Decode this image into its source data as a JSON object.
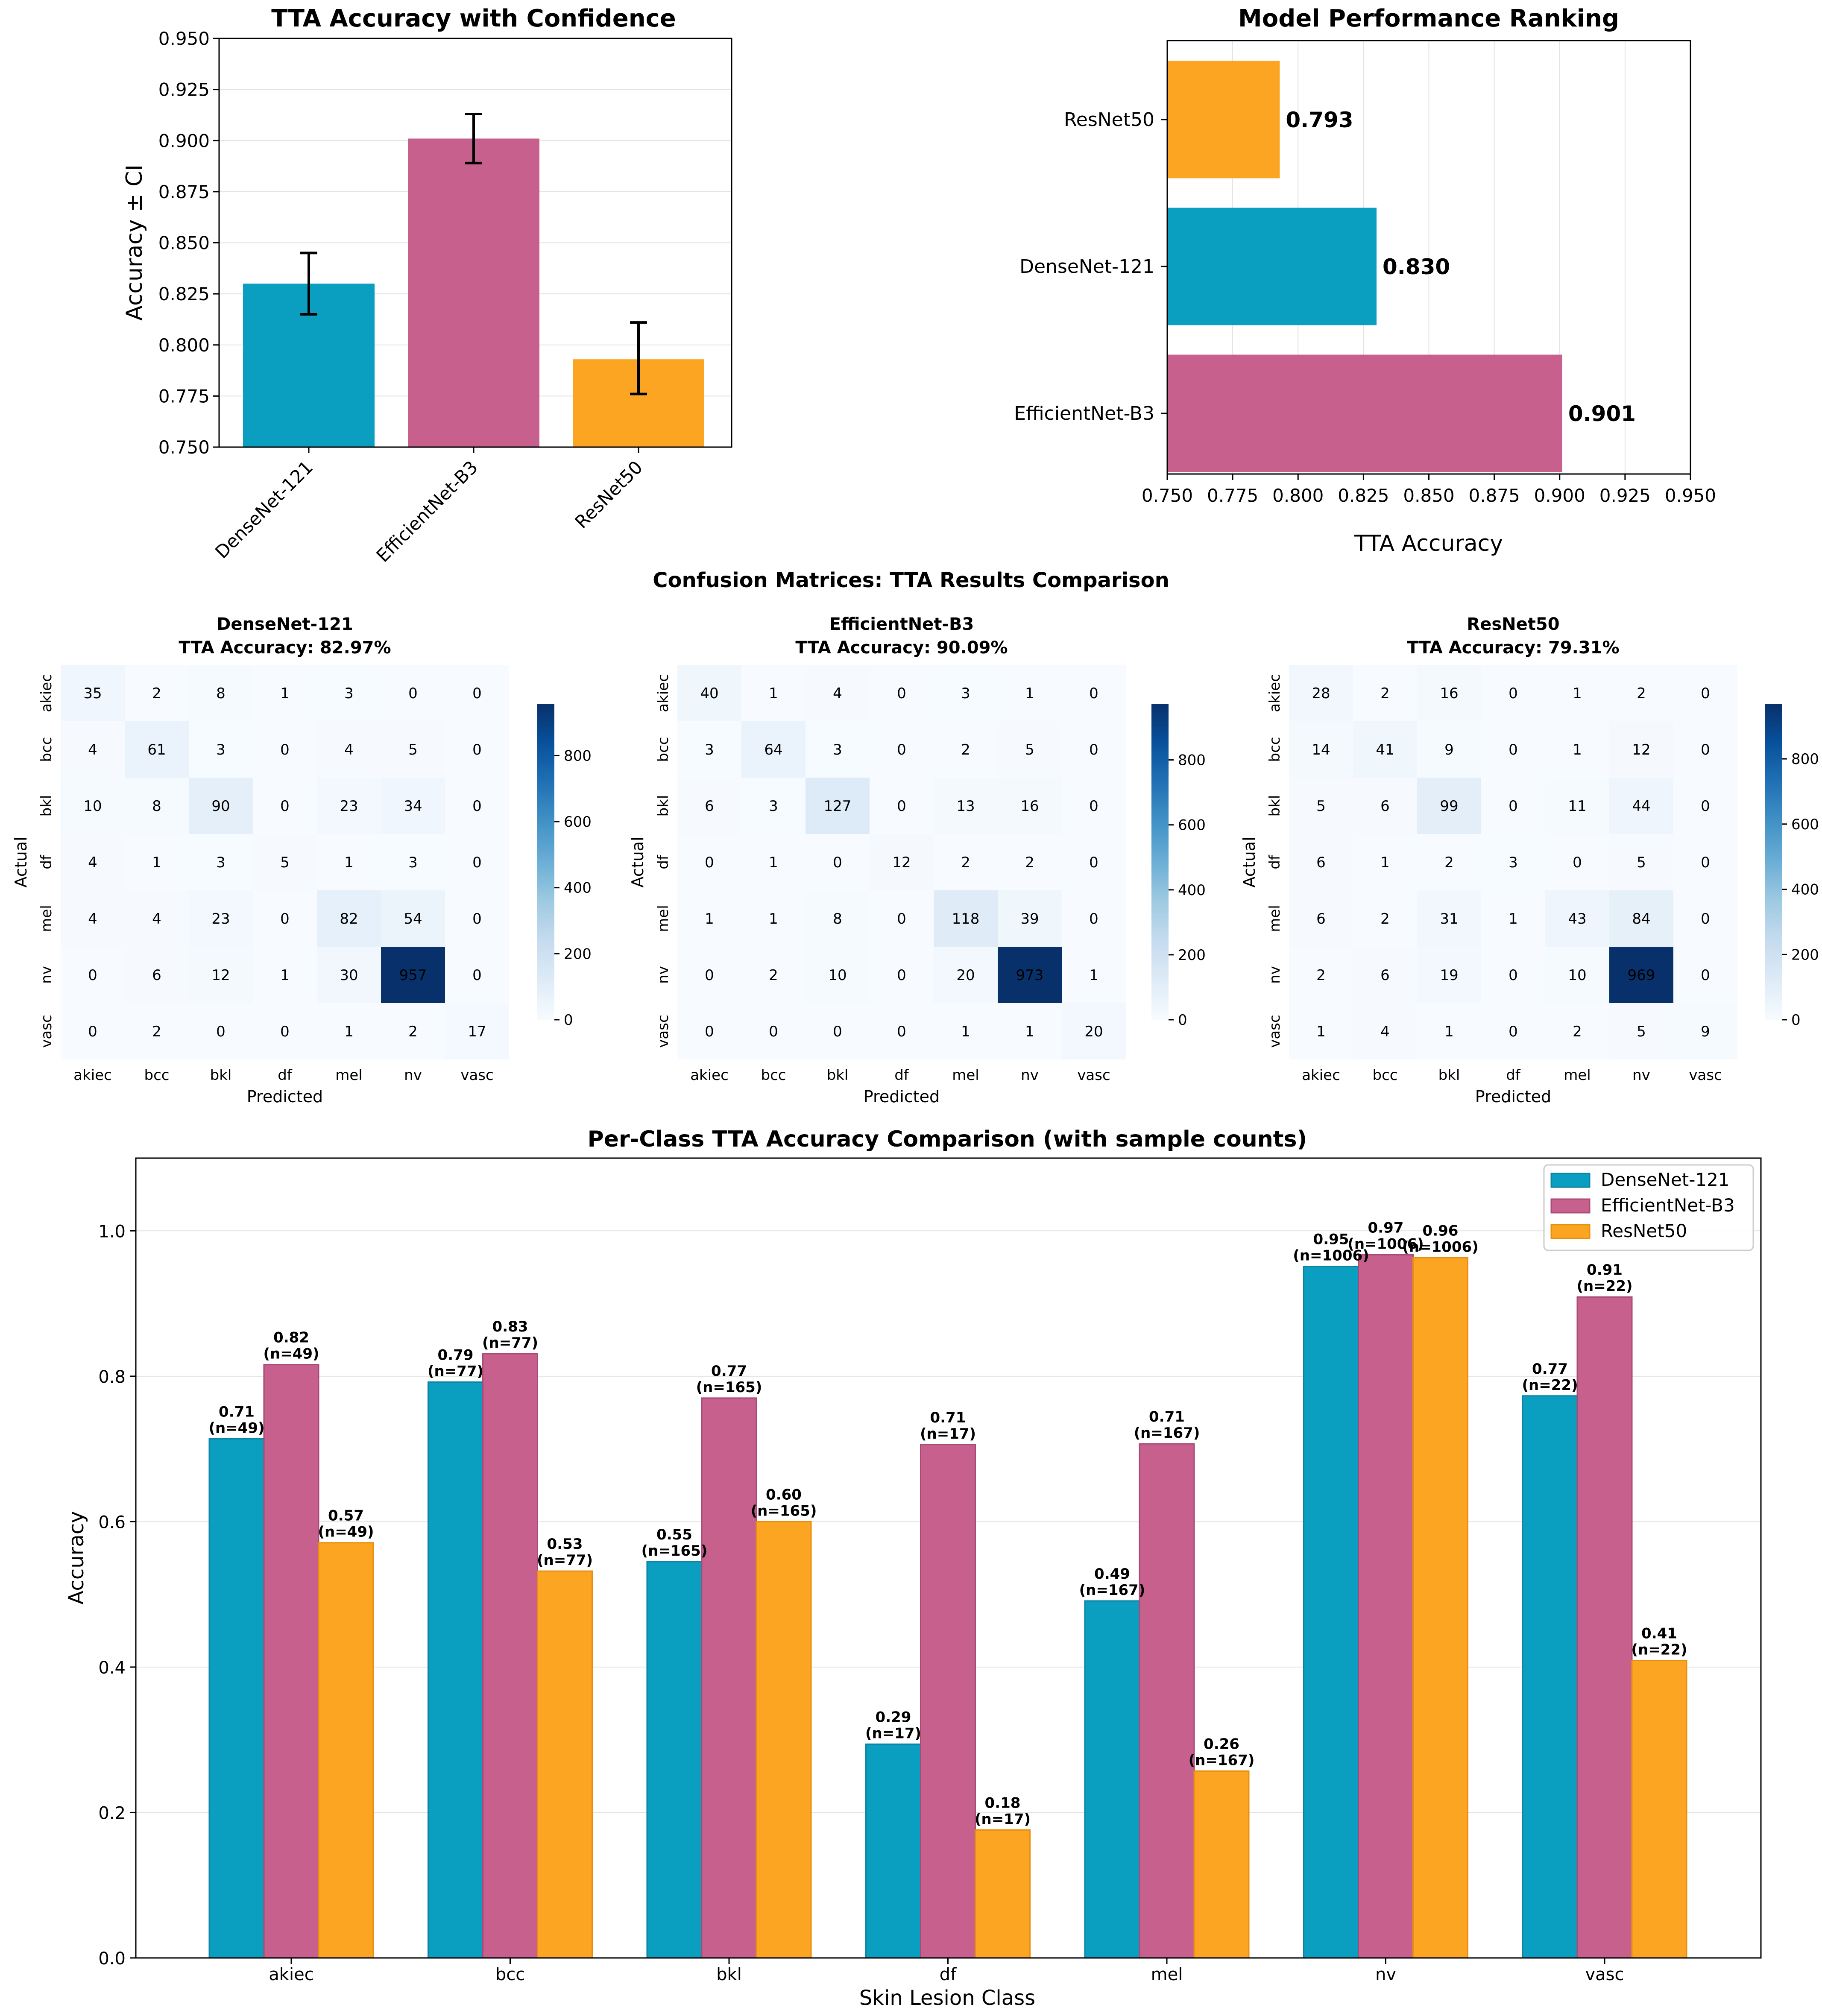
{
  "colors": {
    "densenet": "#0a9fc1",
    "efficientnet": "#c8608e",
    "resnet": "#fba523",
    "edge_densenet": "#0b84a3",
    "edge_efficientnet": "#a74a76",
    "edge_resnet": "#e88f10",
    "error_bar": "#000000",
    "cm_low": "#f7fbff",
    "cm_high": "#08306b"
  },
  "chart_data": [
    {
      "id": "tta_confidence",
      "type": "bar",
      "title": "TTA Accuracy with Confidence",
      "xlabel": "",
      "ylabel": "Accuracy ± CI",
      "categories": [
        "DenseNet-121",
        "EfficientNet-B3",
        "ResNet50"
      ],
      "values": [
        0.83,
        0.901,
        0.793
      ],
      "ci_low": [
        0.815,
        0.889,
        0.776
      ],
      "ci_high": [
        0.845,
        0.913,
        0.811
      ],
      "ylim": [
        0.75,
        0.95
      ],
      "yticks": [
        "0.750",
        "0.775",
        "0.800",
        "0.825",
        "0.850",
        "0.875",
        "0.900",
        "0.925",
        "0.950"
      ],
      "grid": true
    },
    {
      "id": "ranking",
      "type": "bar",
      "orientation": "horizontal",
      "title": "Model Performance Ranking",
      "xlabel": "TTA Accuracy",
      "ylabel": "",
      "categories": [
        "EfficientNet-B3",
        "DenseNet-121",
        "ResNet50"
      ],
      "values": [
        0.901,
        0.83,
        0.793
      ],
      "value_labels": [
        "0.901",
        "0.830",
        "0.793"
      ],
      "xlim": [
        0.75,
        0.95
      ],
      "xticks": [
        "0.750",
        "0.775",
        "0.800",
        "0.825",
        "0.850",
        "0.875",
        "0.900",
        "0.925",
        "0.950"
      ],
      "grid": true
    },
    {
      "id": "confusion",
      "type": "heatmap",
      "suptitle": "Confusion Matrices: TTA Results Comparison",
      "xlabel": "Predicted",
      "ylabel": "Actual",
      "classes": [
        "akiec",
        "bcc",
        "bkl",
        "df",
        "mel",
        "nv",
        "vasc"
      ],
      "colorbar_ticks": [
        "0",
        "200",
        "400",
        "600",
        "800"
      ],
      "matrices": [
        {
          "model": "DenseNet-121",
          "subtitle": "TTA Accuracy: 82.97%",
          "max": 957,
          "values": [
            [
              35,
              2,
              8,
              1,
              3,
              0,
              0
            ],
            [
              4,
              61,
              3,
              0,
              4,
              5,
              0
            ],
            [
              10,
              8,
              90,
              0,
              23,
              34,
              0
            ],
            [
              4,
              1,
              3,
              5,
              1,
              3,
              0
            ],
            [
              4,
              4,
              23,
              0,
              82,
              54,
              0
            ],
            [
              0,
              6,
              12,
              1,
              30,
              957,
              0
            ],
            [
              0,
              2,
              0,
              0,
              1,
              2,
              17
            ]
          ]
        },
        {
          "model": "EfficientNet-B3",
          "subtitle": "TTA Accuracy: 90.09%",
          "max": 973,
          "values": [
            [
              40,
              1,
              4,
              0,
              3,
              1,
              0
            ],
            [
              3,
              64,
              3,
              0,
              2,
              5,
              0
            ],
            [
              6,
              3,
              127,
              0,
              13,
              16,
              0
            ],
            [
              0,
              1,
              0,
              12,
              2,
              2,
              0
            ],
            [
              1,
              1,
              8,
              0,
              118,
              39,
              0
            ],
            [
              0,
              2,
              10,
              0,
              20,
              973,
              1
            ],
            [
              0,
              0,
              0,
              0,
              1,
              1,
              20
            ]
          ]
        },
        {
          "model": "ResNet50",
          "subtitle": "TTA Accuracy: 79.31%",
          "max": 969,
          "values": [
            [
              28,
              2,
              16,
              0,
              1,
              2,
              0
            ],
            [
              14,
              41,
              9,
              0,
              1,
              12,
              0
            ],
            [
              5,
              6,
              99,
              0,
              11,
              44,
              0
            ],
            [
              6,
              1,
              2,
              3,
              0,
              5,
              0
            ],
            [
              6,
              2,
              31,
              1,
              43,
              84,
              0
            ],
            [
              2,
              6,
              19,
              0,
              10,
              969,
              0
            ],
            [
              1,
              4,
              1,
              0,
              2,
              5,
              9
            ]
          ]
        }
      ]
    },
    {
      "id": "per_class",
      "type": "bar",
      "title": "Per-Class TTA Accuracy Comparison (with sample counts)",
      "xlabel": "Skin Lesion Class",
      "ylabel": "Accuracy",
      "categories": [
        "akiec",
        "bcc",
        "bkl",
        "df",
        "mel",
        "nv",
        "vasc"
      ],
      "ylim": [
        0,
        1.1
      ],
      "yticks": [
        "0.0",
        "0.2",
        "0.4",
        "0.6",
        "0.8",
        "1.0"
      ],
      "legend_position": "top-right",
      "grid": true,
      "series": [
        {
          "name": "DenseNet-121",
          "values": [
            0.714,
            0.792,
            0.545,
            0.294,
            0.491,
            0.951,
            0.773
          ],
          "labels": [
            "0.71",
            "0.79",
            "0.55",
            "0.29",
            "0.49",
            "0.95",
            "0.77"
          ],
          "counts": [
            "(n=49)",
            "(n=77)",
            "(n=165)",
            "(n=17)",
            "(n=167)",
            "(n=1006)",
            "(n=22)"
          ]
        },
        {
          "name": "EfficientNet-B3",
          "values": [
            0.816,
            0.831,
            0.77,
            0.706,
            0.707,
            0.967,
            0.909
          ],
          "labels": [
            "0.82",
            "0.83",
            "0.77",
            "0.71",
            "0.71",
            "0.97",
            "0.91"
          ],
          "counts": [
            "(n=49)",
            "(n=77)",
            "(n=165)",
            "(n=17)",
            "(n=167)",
            "(n=1006)",
            "(n=22)"
          ]
        },
        {
          "name": "ResNet50",
          "values": [
            0.571,
            0.532,
            0.6,
            0.176,
            0.257,
            0.963,
            0.409
          ],
          "labels": [
            "0.57",
            "0.53",
            "0.60",
            "0.18",
            "0.26",
            "0.96",
            "0.41"
          ],
          "counts": [
            "(n=49)",
            "(n=77)",
            "(n=165)",
            "(n=17)",
            "(n=167)",
            "(n=1006)",
            "(n=22)"
          ]
        }
      ]
    }
  ]
}
